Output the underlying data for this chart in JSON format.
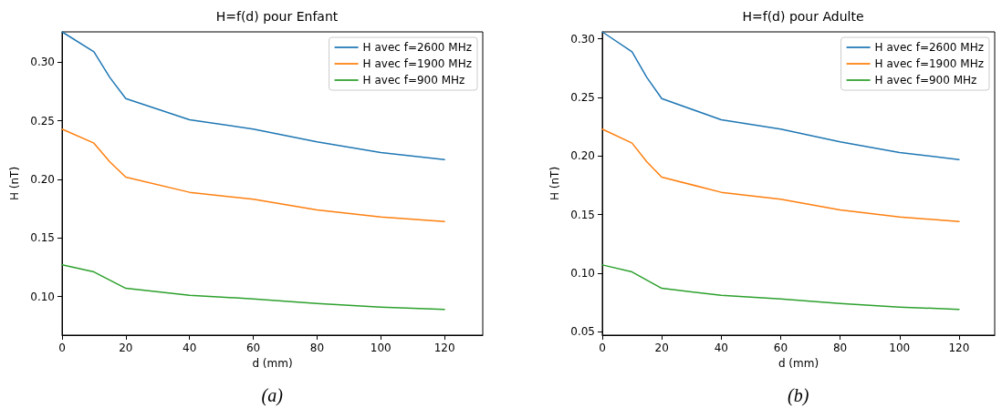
{
  "chart_data": [
    {
      "type": "line",
      "title": "H=f(d) pour Enfant",
      "xlabel": "d (mm)",
      "ylabel": "H (nT)",
      "x": [
        0,
        10,
        15,
        20,
        40,
        60,
        80,
        100,
        120
      ],
      "xlim": [
        0,
        132
      ],
      "xticks": [
        0,
        20,
        40,
        60,
        80,
        100,
        120
      ],
      "ylim": [
        0.067,
        0.326
      ],
      "yticks": [
        {
          "value": 0.1,
          "label": "0.10"
        },
        0.15,
        {
          "value": 0.2,
          "label": "0.20"
        },
        0.25,
        {
          "value": 0.3,
          "label": "0.30"
        }
      ],
      "grid": false,
      "legend": "top right",
      "marker": "none",
      "line_style": "solid",
      "annotations": [
        "(a)"
      ],
      "series": [
        {
          "name": "H avec f=2600 MHz",
          "color": "#1f77b4",
          "values": [
            0.326,
            0.309,
            0.287,
            0.269,
            0.251,
            0.243,
            0.232,
            0.223,
            0.217
          ]
        },
        {
          "name": "H avec f=1900 MHz",
          "color": "#ff7f0e",
          "values": [
            0.243,
            0.231,
            0.215,
            0.202,
            0.189,
            0.183,
            0.174,
            0.168,
            0.164
          ]
        },
        {
          "name": "H avec f=900 MHz",
          "color": "#2ca02c",
          "values": [
            0.127,
            0.121,
            0.114,
            0.107,
            0.101,
            0.098,
            0.094,
            0.091,
            0.089
          ]
        }
      ]
    },
    {
      "type": "line",
      "title": "H=f(d) pour Adulte",
      "xlabel": "d (mm)",
      "ylabel": "H (nT)",
      "x": [
        0,
        10,
        15,
        20,
        40,
        60,
        80,
        100,
        120
      ],
      "xlim": [
        0,
        132
      ],
      "xticks": [
        0,
        20,
        40,
        60,
        80,
        100,
        120
      ],
      "ylim": [
        0.047,
        0.306
      ],
      "yticks": [
        0.05,
        {
          "value": 0.1,
          "label": "0.10"
        },
        0.15,
        {
          "value": 0.2,
          "label": "0.20"
        },
        0.25,
        {
          "value": 0.3,
          "label": "0.30"
        }
      ],
      "grid": false,
      "legend": "top right",
      "marker": "none",
      "line_style": "solid",
      "annotations": [
        "(b)"
      ],
      "series": [
        {
          "name": "H avec f=2600 MHz",
          "color": "#1f77b4",
          "values": [
            0.306,
            0.289,
            0.267,
            0.249,
            0.231,
            0.223,
            0.212,
            0.203,
            0.197
          ]
        },
        {
          "name": "H avec f=1900 MHz",
          "color": "#ff7f0e",
          "values": [
            0.223,
            0.211,
            0.195,
            0.182,
            0.169,
            0.163,
            0.154,
            0.148,
            0.144
          ]
        },
        {
          "name": "H avec f=900 MHz",
          "color": "#2ca02c",
          "values": [
            0.107,
            0.101,
            0.094,
            0.087,
            0.081,
            0.078,
            0.074,
            0.071,
            0.069
          ]
        }
      ]
    }
  ]
}
